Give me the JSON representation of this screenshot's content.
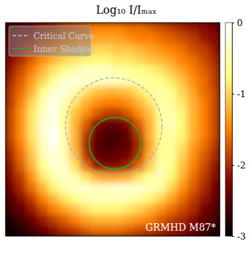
{
  "chart_data": {
    "type": "heatmap",
    "title": "Log₁₀ I/Iₘₐₓ",
    "xlim": [
      -1,
      1
    ],
    "ylim": [
      -1,
      1
    ],
    "tick_labels": false,
    "legend": "upper left",
    "annotation": "GRMHD M87*",
    "x": [
      -0.95,
      -0.85,
      -0.75,
      -0.65,
      -0.55,
      -0.45,
      -0.35,
      -0.25,
      -0.15,
      -0.05,
      0.05,
      0.15,
      0.25,
      0.35,
      0.45,
      0.55,
      0.65,
      0.75,
      0.85,
      0.95
    ],
    "y": [
      0.95,
      0.85,
      0.75,
      0.65,
      0.55,
      0.45,
      0.35,
      0.25,
      0.15,
      0.05,
      -0.05,
      -0.15,
      -0.25,
      -0.35,
      -0.45,
      -0.55,
      -0.65,
      -0.75,
      -0.85,
      -0.95
    ],
    "z": [
      [
        -2.5,
        -2.4,
        -2.3,
        -2.1,
        -2.0,
        -1.8,
        -1.7,
        -1.6,
        -1.5,
        -1.5,
        -1.5,
        -1.6,
        -1.6,
        -1.7,
        -1.8,
        -1.9,
        -2.0,
        -2.1,
        -2.2,
        -2.3
      ],
      [
        -2.4,
        -2.2,
        -2.1,
        -1.9,
        -1.8,
        -1.6,
        -1.5,
        -1.4,
        -1.3,
        -1.3,
        -1.3,
        -1.4,
        -1.5,
        -1.5,
        -1.6,
        -1.7,
        -1.8,
        -1.9,
        -2.1,
        -2.2
      ],
      [
        -2.3,
        -2.1,
        -1.9,
        -1.7,
        -1.5,
        -1.3,
        -1.2,
        -1.1,
        -1.0,
        -1.0,
        -1.1,
        -1.1,
        -1.2,
        -1.3,
        -1.4,
        -1.5,
        -1.6,
        -1.8,
        -1.9,
        -2.1
      ],
      [
        -2.2,
        -2.0,
        -1.7,
        -1.4,
        -1.2,
        -1.0,
        -0.9,
        -0.8,
        -0.8,
        -0.8,
        -0.9,
        -0.9,
        -1.0,
        -1.1,
        -1.2,
        -1.3,
        -1.5,
        -1.6,
        -1.8,
        -2.0
      ],
      [
        -2.1,
        -1.8,
        -1.5,
        -1.2,
        -0.9,
        -0.7,
        -0.5,
        -0.4,
        -0.3,
        -0.4,
        -0.5,
        -0.6,
        -0.7,
        -0.8,
        -0.9,
        -1.1,
        -1.3,
        -1.5,
        -1.7,
        -1.9
      ],
      [
        -2.0,
        -1.7,
        -1.3,
        -1.0,
        -0.6,
        -0.3,
        -0.2,
        -0.3,
        -0.4,
        -0.4,
        -0.4,
        -0.5,
        -0.5,
        -0.6,
        -0.7,
        -0.9,
        -1.1,
        -1.4,
        -1.6,
        -1.9
      ],
      [
        -1.9,
        -1.6,
        -1.2,
        -0.7,
        -0.3,
        -0.2,
        -0.5,
        -0.9,
        -1.1,
        -1.2,
        -1.2,
        -1.1,
        -0.9,
        -0.6,
        -0.5,
        -0.7,
        -1.0,
        -1.3,
        -1.6,
        -1.8
      ],
      [
        -1.9,
        -1.5,
        -1.0,
        -0.5,
        -0.1,
        -0.4,
        -0.9,
        -1.2,
        -1.4,
        -1.5,
        -1.5,
        -1.4,
        -1.2,
        -0.9,
        -0.5,
        -0.6,
        -0.9,
        -1.2,
        -1.5,
        -1.8
      ],
      [
        -1.8,
        -1.4,
        -0.9,
        -0.4,
        -0.1,
        -0.6,
        -1.1,
        -1.4,
        -1.7,
        -1.9,
        -1.9,
        -1.7,
        -1.4,
        -1.1,
        -0.6,
        -0.5,
        -0.8,
        -1.2,
        -1.5,
        -1.8
      ],
      [
        -1.8,
        -1.4,
        -0.9,
        -0.3,
        -0.1,
        -0.6,
        -1.2,
        -1.7,
        -2.2,
        -2.4,
        -2.4,
        -2.2,
        -1.7,
        -1.2,
        -0.6,
        -0.4,
        -0.8,
        -1.2,
        -1.5,
        -1.8
      ],
      [
        -1.8,
        -1.4,
        -0.9,
        -0.3,
        0.0,
        -0.5,
        -1.2,
        -1.9,
        -2.4,
        -2.6,
        -2.6,
        -2.4,
        -1.9,
        -1.2,
        -0.7,
        -0.5,
        -0.8,
        -1.2,
        -1.5,
        -1.8
      ],
      [
        -1.9,
        -1.5,
        -1.0,
        -0.4,
        -0.1,
        -0.5,
        -1.2,
        -2.0,
        -2.5,
        -2.6,
        -2.5,
        -2.4,
        -2.0,
        -1.3,
        -0.7,
        -0.6,
        -0.9,
        -1.3,
        -1.6,
        -1.9
      ],
      [
        -2.0,
        -1.6,
        -1.1,
        -0.5,
        -0.2,
        -0.4,
        -1.1,
        -1.9,
        -2.4,
        -2.5,
        -2.4,
        -2.3,
        -1.9,
        -1.2,
        -0.6,
        -0.6,
        -1.0,
        -1.4,
        -1.7,
        -2.0
      ],
      [
        -2.1,
        -1.7,
        -1.2,
        -0.7,
        -0.3,
        -0.3,
        -0.9,
        -1.6,
        -2.1,
        -2.2,
        -2.2,
        -2.0,
        -1.6,
        -1.0,
        -0.5,
        -0.7,
        -1.1,
        -1.5,
        -1.8,
        -2.1
      ],
      [
        -2.2,
        -1.9,
        -1.4,
        -0.9,
        -0.5,
        -0.3,
        -0.5,
        -0.9,
        -1.2,
        -1.3,
        -1.3,
        -1.2,
        -0.9,
        -0.6,
        -0.4,
        -0.8,
        -1.2,
        -1.6,
        -1.9,
        -2.2
      ],
      [
        -2.3,
        -2.0,
        -1.6,
        -1.2,
        -0.8,
        -0.5,
        -0.3,
        -0.3,
        -0.4,
        -0.4,
        -0.3,
        -0.3,
        -0.3,
        -0.4,
        -0.6,
        -1.0,
        -1.4,
        -1.7,
        -2.0,
        -2.3
      ],
      [
        -2.5,
        -2.2,
        -1.9,
        -1.5,
        -1.2,
        -0.9,
        -0.7,
        -0.5,
        -0.4,
        -0.4,
        -0.4,
        -0.5,
        -0.6,
        -0.8,
        -1.0,
        -1.3,
        -1.6,
        -1.9,
        -2.1,
        -2.4
      ],
      [
        -2.6,
        -2.4,
        -2.1,
        -1.8,
        -1.5,
        -1.3,
        -1.1,
        -0.9,
        -0.8,
        -0.8,
        -0.8,
        -0.9,
        -1.0,
        -1.2,
        -1.4,
        -1.6,
        -1.8,
        -2.0,
        -2.3,
        -2.5
      ],
      [
        -2.8,
        -2.6,
        -2.4,
        -2.1,
        -1.9,
        -1.7,
        -1.5,
        -1.3,
        -1.2,
        -1.2,
        -1.2,
        -1.3,
        -1.4,
        -1.5,
        -1.7,
        -1.9,
        -2.0,
        -2.2,
        -2.4,
        -2.6
      ],
      [
        -2.9,
        -2.8,
        -2.6,
        -2.4,
        -2.2,
        -2.0,
        -1.9,
        -1.7,
        -1.6,
        -1.6,
        -1.6,
        -1.7,
        -1.8,
        -1.9,
        -2.0,
        -2.1,
        -2.2,
        -2.4,
        -2.6,
        -2.8
      ]
    ],
    "colorbar": {
      "range": [
        -3,
        0
      ],
      "ticks": [
        0,
        -1,
        -2,
        -3
      ]
    },
    "series": [
      {
        "name": "Critical Curve",
        "type": "circle",
        "color": "#a7a9cf",
        "line_style": "dashed",
        "center": [
          0.01,
          0.03
        ],
        "radius": 0.45
      },
      {
        "name": "Inner Shadow",
        "type": "circle",
        "color": "#2e9e3a",
        "line_style": "solid",
        "center": [
          0.02,
          -0.13
        ],
        "radius": 0.24
      }
    ]
  }
}
